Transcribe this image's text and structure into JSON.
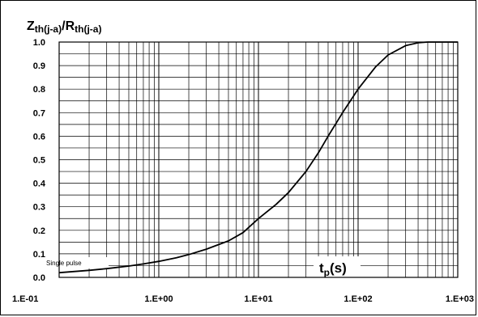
{
  "chart_data": {
    "type": "line",
    "title": "",
    "ylabel": {
      "base1": "Z",
      "sub1": "th(j-a)",
      "mid": "/",
      "base2": "R",
      "sub2": "th(j-a)"
    },
    "xlabel": {
      "base": "t",
      "sub": "p",
      "rest": "(s)"
    },
    "annotation": "Single pulse",
    "xscale": "log",
    "xlim": [
      0.1,
      1000
    ],
    "ylim": [
      0.0,
      1.0
    ],
    "grid": true,
    "x_tick_labels": [
      "1.E-01",
      "1.E+00",
      "1.E+01",
      "1.E+02",
      "1.E+03"
    ],
    "x_tick_values": [
      0.1,
      1,
      10,
      100,
      1000
    ],
    "y_tick_labels": [
      "0.0",
      "0.1",
      "0.2",
      "0.3",
      "0.4",
      "0.5",
      "0.6",
      "0.7",
      "0.8",
      "0.9",
      "1.0"
    ],
    "y_tick_values": [
      0.0,
      0.1,
      0.2,
      0.3,
      0.4,
      0.5,
      0.6,
      0.7,
      0.8,
      0.9,
      1.0
    ],
    "series": [
      {
        "color": "#000000",
        "x": [
          0.1,
          0.2,
          0.3,
          0.5,
          0.7,
          1,
          1.5,
          2,
          3,
          5,
          7,
          10,
          15,
          20,
          30,
          40,
          50,
          70,
          100,
          150,
          200,
          300,
          400,
          500,
          700,
          1000
        ],
        "y": [
          0.02,
          0.03,
          0.037,
          0.048,
          0.057,
          0.068,
          0.083,
          0.097,
          0.12,
          0.155,
          0.19,
          0.25,
          0.31,
          0.36,
          0.45,
          0.53,
          0.6,
          0.7,
          0.8,
          0.895,
          0.945,
          0.985,
          0.997,
          1.0,
          1.0,
          1.0
        ]
      }
    ]
  }
}
